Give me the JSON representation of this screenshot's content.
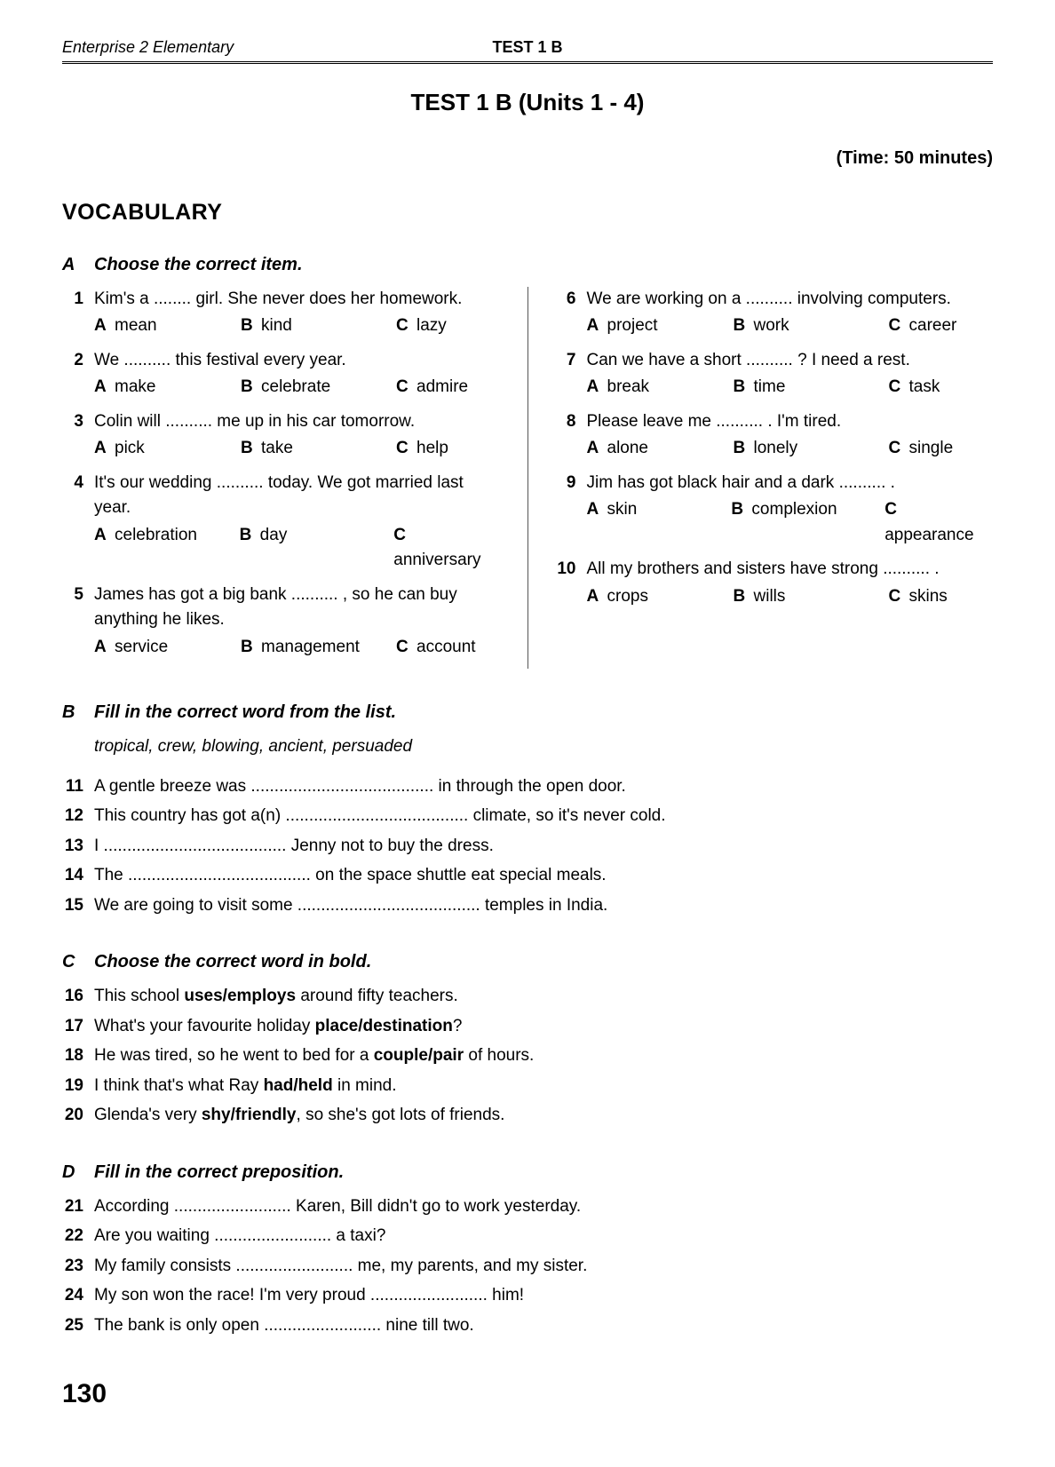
{
  "header": {
    "book": "Enterprise 2 Elementary",
    "center": "TEST 1 B"
  },
  "title": {
    "main": "TEST 1 B",
    "subtitle": "(Units 1 - 4)"
  },
  "time": "(Time: 50 minutes)",
  "vocab_heading": "VOCABULARY",
  "sectionA": {
    "letter": "A",
    "instruction": "Choose the correct item.",
    "left": [
      {
        "n": "1",
        "text": "Kim's a ........ girl. She never does her homework.",
        "a": "mean",
        "b": "kind",
        "c": "lazy"
      },
      {
        "n": "2",
        "text": "We .......... this festival every year.",
        "a": "make",
        "b": "celebrate",
        "c": "admire"
      },
      {
        "n": "3",
        "text": "Colin will .......... me up in his car tomorrow.",
        "a": "pick",
        "b": "take",
        "c": "help"
      },
      {
        "n": "4",
        "text": "It's our wedding .......... today. We got married last year.",
        "a": "celebration",
        "b": "day",
        "c": "anniversary"
      },
      {
        "n": "5",
        "text": "James has got a big bank .......... , so he can buy anything he likes.",
        "a": "service",
        "b": "management",
        "c": "account"
      }
    ],
    "right": [
      {
        "n": "6",
        "text": "We are working on a .......... involving computers.",
        "a": "project",
        "b": "work",
        "c": "career"
      },
      {
        "n": "7",
        "text": "Can we have a short .......... ? I need a rest.",
        "a": "break",
        "b": "time",
        "c": "task"
      },
      {
        "n": "8",
        "text": "Please leave me .......... . I'm tired.",
        "a": "alone",
        "b": "lonely",
        "c": "single"
      },
      {
        "n": "9",
        "text": "Jim has got black hair and a dark .......... .",
        "a": "skin",
        "b": "complexion",
        "c": "appearance"
      },
      {
        "n": "10",
        "text": "All my brothers and sisters have strong .......... .",
        "a": "crops",
        "b": "wills",
        "c": "skins"
      }
    ]
  },
  "sectionB": {
    "letter": "B",
    "instruction": "Fill in the correct word from the list.",
    "wordlist": "tropical, crew, blowing, ancient, persuaded",
    "items": [
      {
        "n": "11",
        "text": "A gentle breeze was ....................................... in through the open door."
      },
      {
        "n": "12",
        "text": "This country has got a(n) ....................................... climate, so it's never cold."
      },
      {
        "n": "13",
        "text": "I ....................................... Jenny not to buy the dress."
      },
      {
        "n": "14",
        "text": "The ....................................... on the space shuttle eat special meals."
      },
      {
        "n": "15",
        "text": "We are going to visit some ....................................... temples in India."
      }
    ]
  },
  "sectionC": {
    "letter": "C",
    "instruction": "Choose the correct word in bold.",
    "items": [
      {
        "n": "16",
        "pre": "This school ",
        "bold": "uses/employs",
        "post": " around fifty teachers."
      },
      {
        "n": "17",
        "pre": "What's your favourite holiday ",
        "bold": "place/destination",
        "post": "?"
      },
      {
        "n": "18",
        "pre": "He was tired, so he went to bed for a ",
        "bold": "couple/pair",
        "post": " of hours."
      },
      {
        "n": "19",
        "pre": "I think that's what Ray ",
        "bold": "had/held",
        "post": " in mind."
      },
      {
        "n": "20",
        "pre": "Glenda's very ",
        "bold": "shy/friendly",
        "post": ", so she's got lots of friends."
      }
    ]
  },
  "sectionD": {
    "letter": "D",
    "instruction": "Fill in the correct preposition.",
    "items": [
      {
        "n": "21",
        "text": "According ......................... Karen, Bill didn't go to work yesterday."
      },
      {
        "n": "22",
        "text": "Are you waiting ......................... a taxi?"
      },
      {
        "n": "23",
        "text": "My family consists ......................... me, my parents, and my sister."
      },
      {
        "n": "24",
        "text": "My son won the race! I'm very proud ......................... him!"
      },
      {
        "n": "25",
        "text": "The bank is only open ......................... nine till two."
      }
    ]
  },
  "page_number": "130"
}
